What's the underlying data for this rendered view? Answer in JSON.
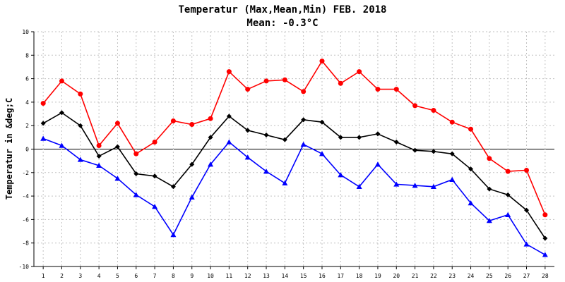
{
  "chart_data": {
    "type": "line",
    "title": "Temperatur (Max,Mean,Min) FEB. 2018",
    "subtitle": "Mean: -0.3°C",
    "xlabel": "",
    "ylabel": "Temperatur in &deg;C",
    "ylim": [
      -10,
      10
    ],
    "yticks": [
      -10,
      -8,
      -6,
      -4,
      -2,
      0,
      2,
      4,
      6,
      8,
      10
    ],
    "x": [
      1,
      2,
      3,
      4,
      5,
      6,
      7,
      8,
      9,
      10,
      11,
      12,
      13,
      14,
      15,
      16,
      17,
      18,
      19,
      20,
      21,
      22,
      23,
      24,
      25,
      26,
      27,
      28
    ],
    "grid": true,
    "series": [
      {
        "color": "#ff0000",
        "marker": "circle",
        "values": [
          3.9,
          5.8,
          4.7,
          0.3,
          2.2,
          -0.4,
          0.6,
          2.4,
          2.1,
          2.6,
          6.6,
          5.1,
          5.8,
          5.9,
          4.9,
          7.5,
          5.6,
          6.6,
          5.1,
          5.1,
          3.7,
          3.3,
          2.3,
          1.7,
          -0.8,
          -1.9,
          -1.8,
          -5.6
        ]
      },
      {
        "color": "#000000",
        "marker": "diamond",
        "values": [
          2.2,
          3.1,
          2.0,
          -0.6,
          0.2,
          -2.1,
          -2.3,
          -3.2,
          -1.3,
          1.0,
          2.8,
          1.6,
          1.2,
          0.8,
          2.5,
          2.3,
          1.0,
          1.0,
          1.3,
          0.6,
          -0.1,
          -0.2,
          -0.4,
          -1.7,
          -3.4,
          -3.9,
          -5.2,
          -7.6
        ]
      },
      {
        "color": "#0000ff",
        "marker": "triangle",
        "values": [
          0.9,
          0.3,
          -0.9,
          -1.4,
          -2.5,
          -3.9,
          -4.9,
          -7.3,
          -4.1,
          -1.3,
          0.6,
          -0.7,
          -1.9,
          -2.9,
          0.4,
          -0.4,
          -2.2,
          -3.2,
          -1.3,
          -3.0,
          -3.1,
          -3.2,
          -2.6,
          -4.6,
          -6.1,
          -5.6,
          -8.1,
          -9.0
        ]
      }
    ]
  }
}
